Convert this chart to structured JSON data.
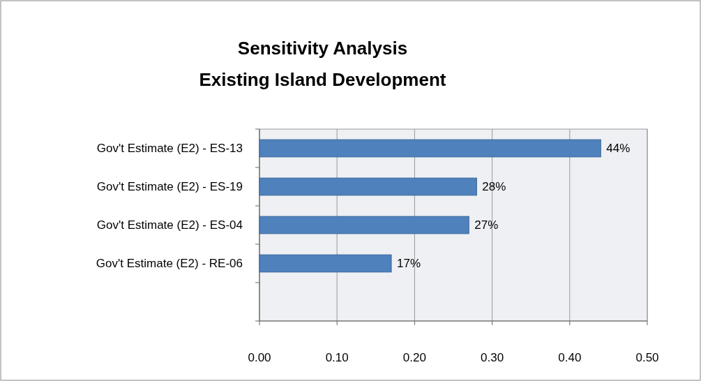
{
  "chart_data": {
    "type": "bar",
    "orientation": "horizontal",
    "title": "Sensitivity Analysis",
    "subtitle": "Existing Island Development",
    "categories": [
      "Gov't Estimate (E2) - ES-13",
      "Gov't Estimate (E2) - ES-19",
      "Gov't Estimate (E2) - ES-04",
      "Gov't Estimate (E2) - RE-06",
      null
    ],
    "values": [
      0.44,
      0.28,
      0.27,
      0.17,
      null
    ],
    "value_labels": [
      "44%",
      "28%",
      "27%",
      "17%",
      null
    ],
    "color": "#4f81bd",
    "xlim": [
      0,
      0.5
    ],
    "xticks": [
      {
        "value": 0,
        "label": "0.00"
      },
      {
        "value": 0.1,
        "label": "0.10"
      },
      {
        "value": 0.2,
        "label": "0.20"
      },
      {
        "value": 0.3,
        "label": "0.30"
      },
      {
        "value": 0.4,
        "label": "0.40"
      },
      {
        "value": 0.5,
        "label": "0.50"
      }
    ],
    "grid": "x"
  }
}
